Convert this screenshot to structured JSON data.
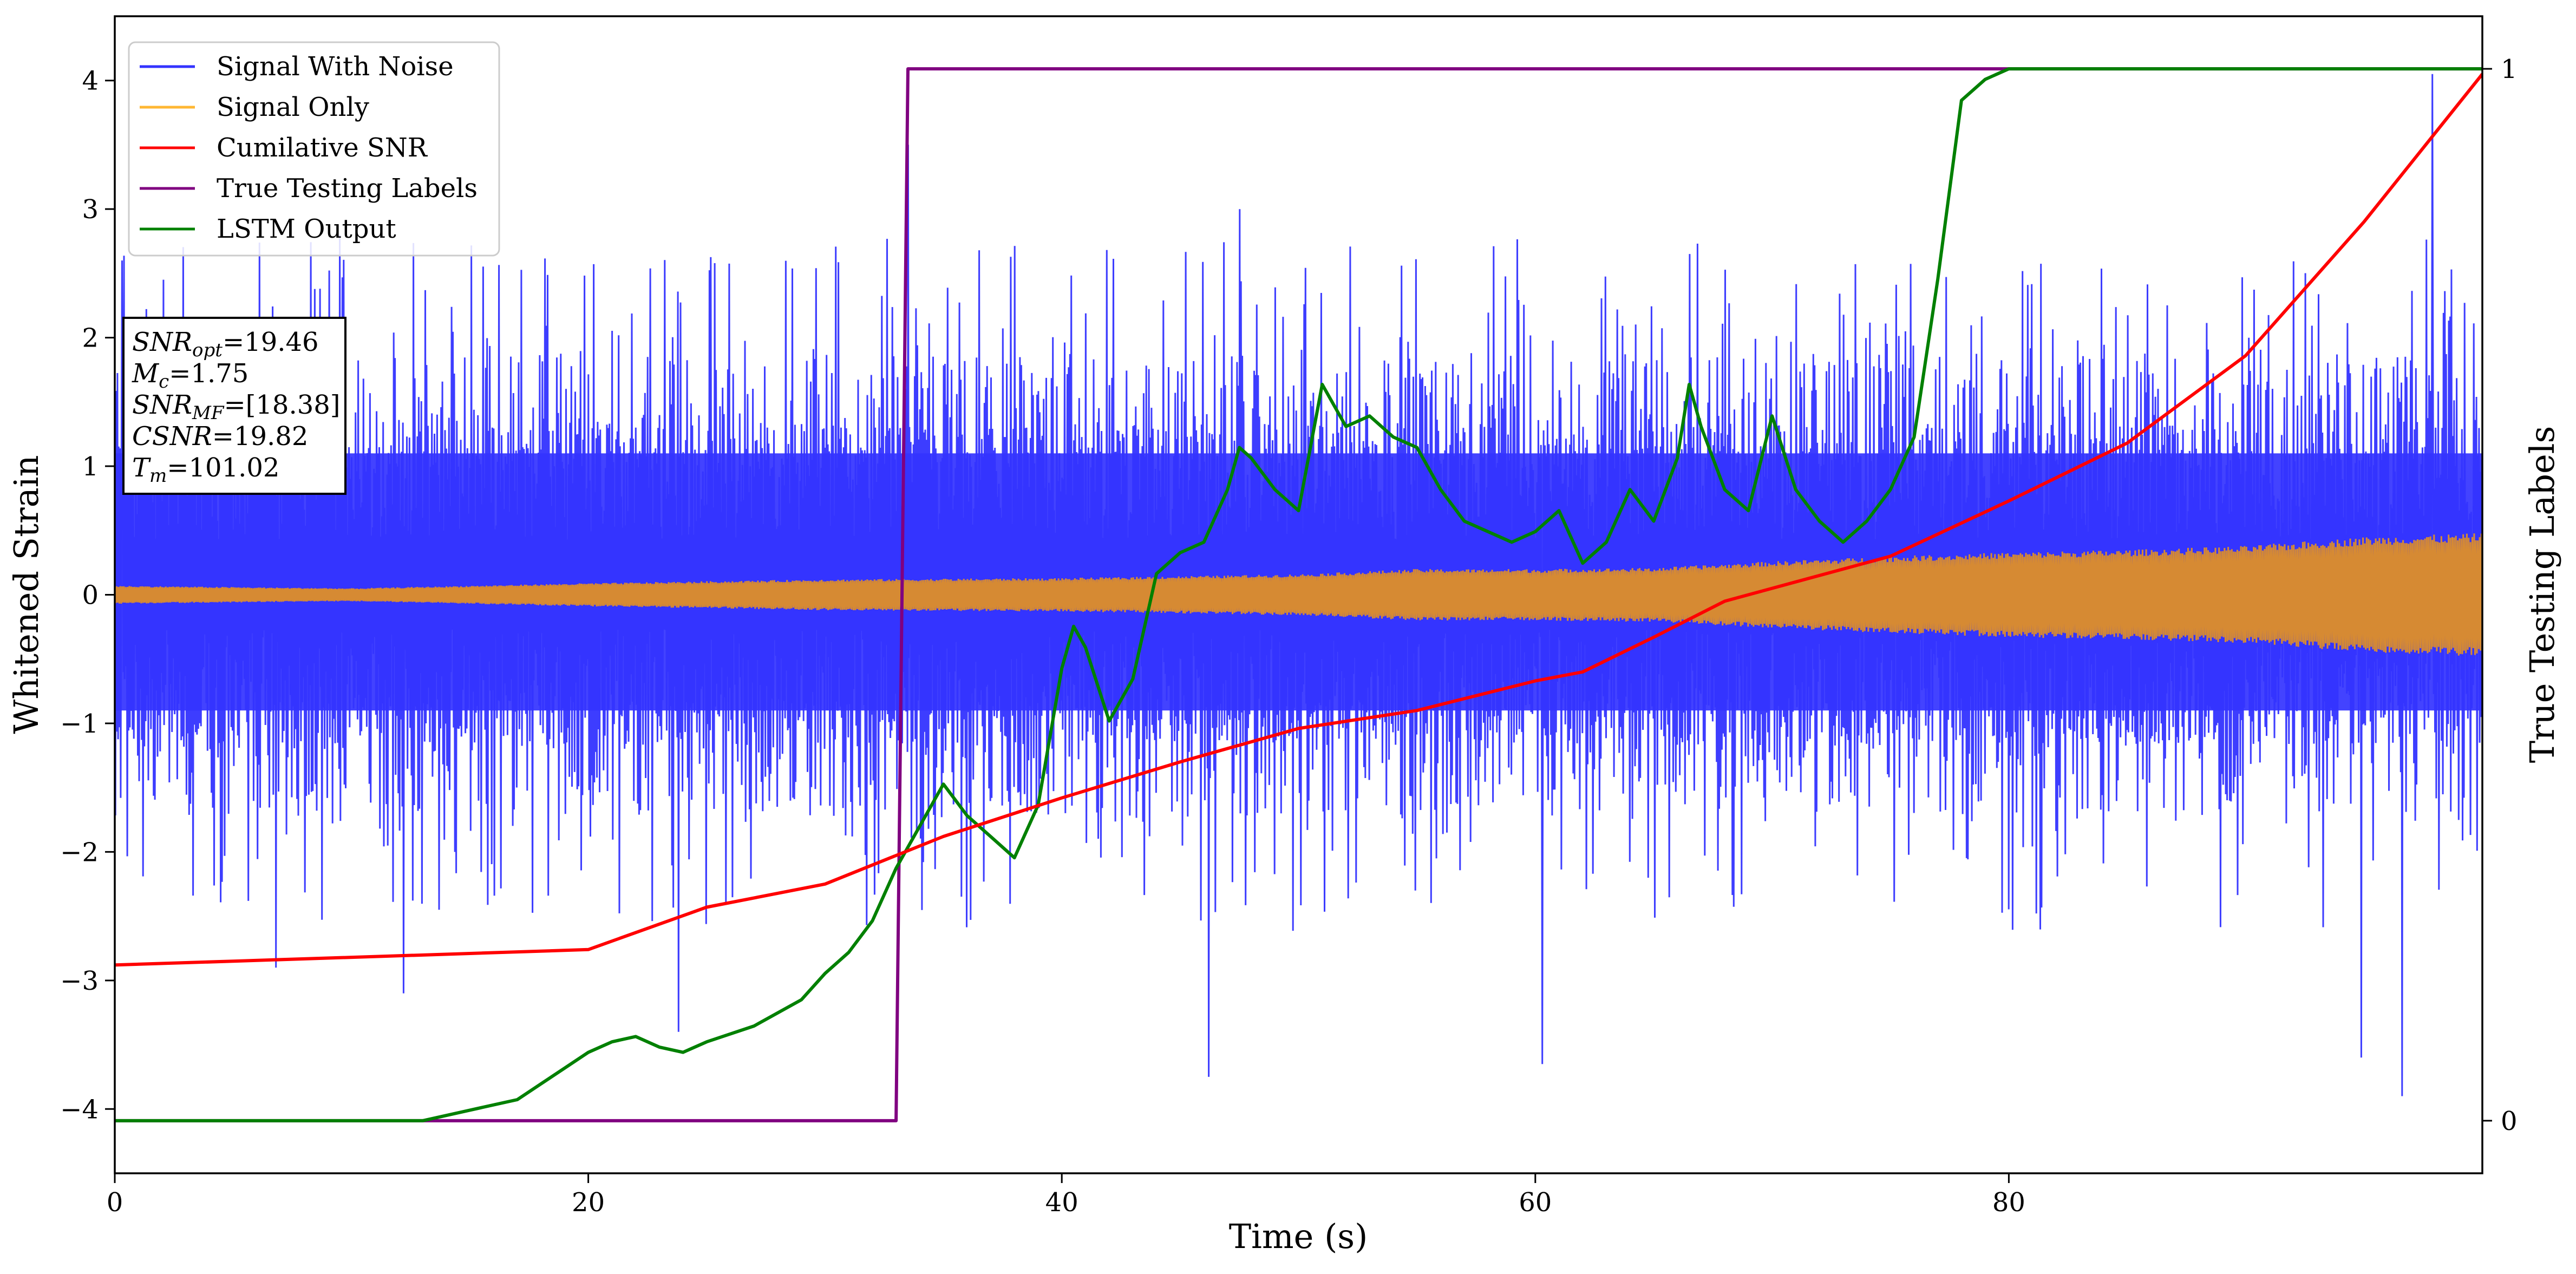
{
  "chart_data": {
    "type": "line",
    "xlabel": "Time (s)",
    "ylabel": "Whitened Strain",
    "y2label": "True Testing Labels",
    "xlim": [
      0,
      100
    ],
    "ylim": [
      -4.5,
      4.5
    ],
    "y2lim": [
      -0.05,
      1.05
    ],
    "x_ticks": [
      0,
      20,
      40,
      60,
      80
    ],
    "y_ticks": [
      -4,
      -3,
      -2,
      -1,
      0,
      1,
      2,
      3,
      4
    ],
    "y2_ticks": [
      0,
      1
    ],
    "x_tick_labels": [
      "0",
      "20",
      "40",
      "60",
      "80"
    ],
    "y_tick_labels": [
      "−4",
      "−3",
      "−2",
      "−1",
      "0",
      "1",
      "2",
      "3",
      "4"
    ],
    "y2_tick_labels": [
      "0",
      "1"
    ],
    "grid": false,
    "legend_position": "top-left",
    "legend": [
      {
        "name": "Signal With Noise",
        "color": "#3333ff"
      },
      {
        "name": "Signal Only",
        "color": "#ffb733"
      },
      {
        "name": "Cumilative SNR",
        "color": "#ff0000"
      },
      {
        "name": "True Testing Labels",
        "color": "#800080"
      },
      {
        "name": "LSTM Output",
        "color": "#008000"
      }
    ],
    "annotation": [
      {
        "base": "SNR",
        "sub": "opt",
        "value": "=19.46"
      },
      {
        "base": "M",
        "sub": "c",
        "value": "=1.75"
      },
      {
        "base": "SNR",
        "sub": "MF",
        "value": "=[18.38]"
      },
      {
        "base": "CSNR",
        "sub": "",
        "value": "=19.82"
      },
      {
        "base": "T",
        "sub": "m",
        "value": "=101.02"
      }
    ],
    "signal_with_noise": {
      "name": "Signal With Noise",
      "color": "#3333ff",
      "core_band": [
        -0.9,
        1.1
      ],
      "typical_peaks": [
        -2.5,
        2.7
      ],
      "extreme_peaks": [
        {
          "x": 0.3,
          "y": 2.6
        },
        {
          "x": 6.8,
          "y": -2.9
        },
        {
          "x": 9.5,
          "y": 2.8
        },
        {
          "x": 12.2,
          "y": -3.1
        },
        {
          "x": 23.8,
          "y": -3.4
        },
        {
          "x": 33.5,
          "y": 3.5
        },
        {
          "x": 46.2,
          "y": -3.75
        },
        {
          "x": 47.5,
          "y": 3.0
        },
        {
          "x": 60.3,
          "y": -3.65
        },
        {
          "x": 94.9,
          "y": -3.6
        },
        {
          "x": 96.6,
          "y": -3.9
        },
        {
          "x": 97.9,
          "y": 4.05
        }
      ]
    },
    "signal_only": {
      "name": "Signal Only",
      "color": "#ffb733",
      "x": [
        0,
        10,
        20,
        30,
        40,
        50,
        55,
        60,
        65,
        70,
        75,
        80,
        85,
        90,
        95,
        100
      ],
      "amplitude": [
        0.07,
        0.05,
        0.09,
        0.12,
        0.13,
        0.16,
        0.2,
        0.2,
        0.21,
        0.26,
        0.3,
        0.33,
        0.35,
        0.38,
        0.45,
        0.48
      ]
    },
    "series": [
      {
        "name": "Cumilative SNR",
        "color": "#ff0000",
        "axis": "left",
        "x": [
          0,
          5,
          10,
          15,
          20,
          25,
          30,
          35,
          40,
          45,
          50,
          55,
          60,
          62,
          65,
          68,
          70,
          75,
          80,
          85,
          90,
          95,
          100
        ],
        "y": [
          -2.88,
          -2.85,
          -2.82,
          -2.79,
          -2.76,
          -2.43,
          -2.25,
          -1.88,
          -1.58,
          -1.3,
          -1.04,
          -0.9,
          -0.67,
          -0.6,
          -0.33,
          -0.05,
          0.05,
          0.3,
          0.73,
          1.18,
          1.86,
          2.9,
          4.05
        ]
      },
      {
        "name": "True Testing Labels",
        "color": "#800080",
        "axis": "right",
        "x": [
          0,
          33.0,
          33.5,
          100
        ],
        "y": [
          0,
          0,
          1,
          1
        ]
      },
      {
        "name": "LSTM Output",
        "color": "#008000",
        "axis": "right",
        "x": [
          0,
          13,
          15,
          17,
          18,
          19,
          20,
          21,
          22,
          23,
          24,
          25,
          27,
          29,
          30,
          31,
          32,
          33,
          34,
          35,
          36,
          37,
          38,
          39,
          40,
          40.5,
          41,
          42,
          43,
          44,
          45,
          46,
          47,
          47.5,
          48,
          49,
          50,
          51,
          52,
          53,
          54,
          55,
          56,
          57,
          58,
          59,
          60,
          61,
          62,
          63,
          64,
          65,
          66,
          66.5,
          67,
          68,
          69,
          70,
          71,
          72,
          73,
          74,
          75,
          76,
          77,
          78,
          79,
          80,
          90,
          100
        ],
        "y": [
          0,
          0,
          0.01,
          0.02,
          0.035,
          0.05,
          0.065,
          0.075,
          0.08,
          0.07,
          0.065,
          0.075,
          0.09,
          0.115,
          0.14,
          0.16,
          0.19,
          0.24,
          0.28,
          0.32,
          0.29,
          0.27,
          0.25,
          0.3,
          0.43,
          0.47,
          0.45,
          0.38,
          0.42,
          0.52,
          0.54,
          0.55,
          0.6,
          0.64,
          0.63,
          0.6,
          0.58,
          0.7,
          0.66,
          0.67,
          0.65,
          0.64,
          0.6,
          0.57,
          0.56,
          0.55,
          0.56,
          0.58,
          0.53,
          0.55,
          0.6,
          0.57,
          0.63,
          0.7,
          0.66,
          0.6,
          0.58,
          0.67,
          0.6,
          0.57,
          0.55,
          0.57,
          0.6,
          0.65,
          0.8,
          0.97,
          0.99,
          1.0,
          1.0,
          1.0
        ]
      }
    ]
  }
}
